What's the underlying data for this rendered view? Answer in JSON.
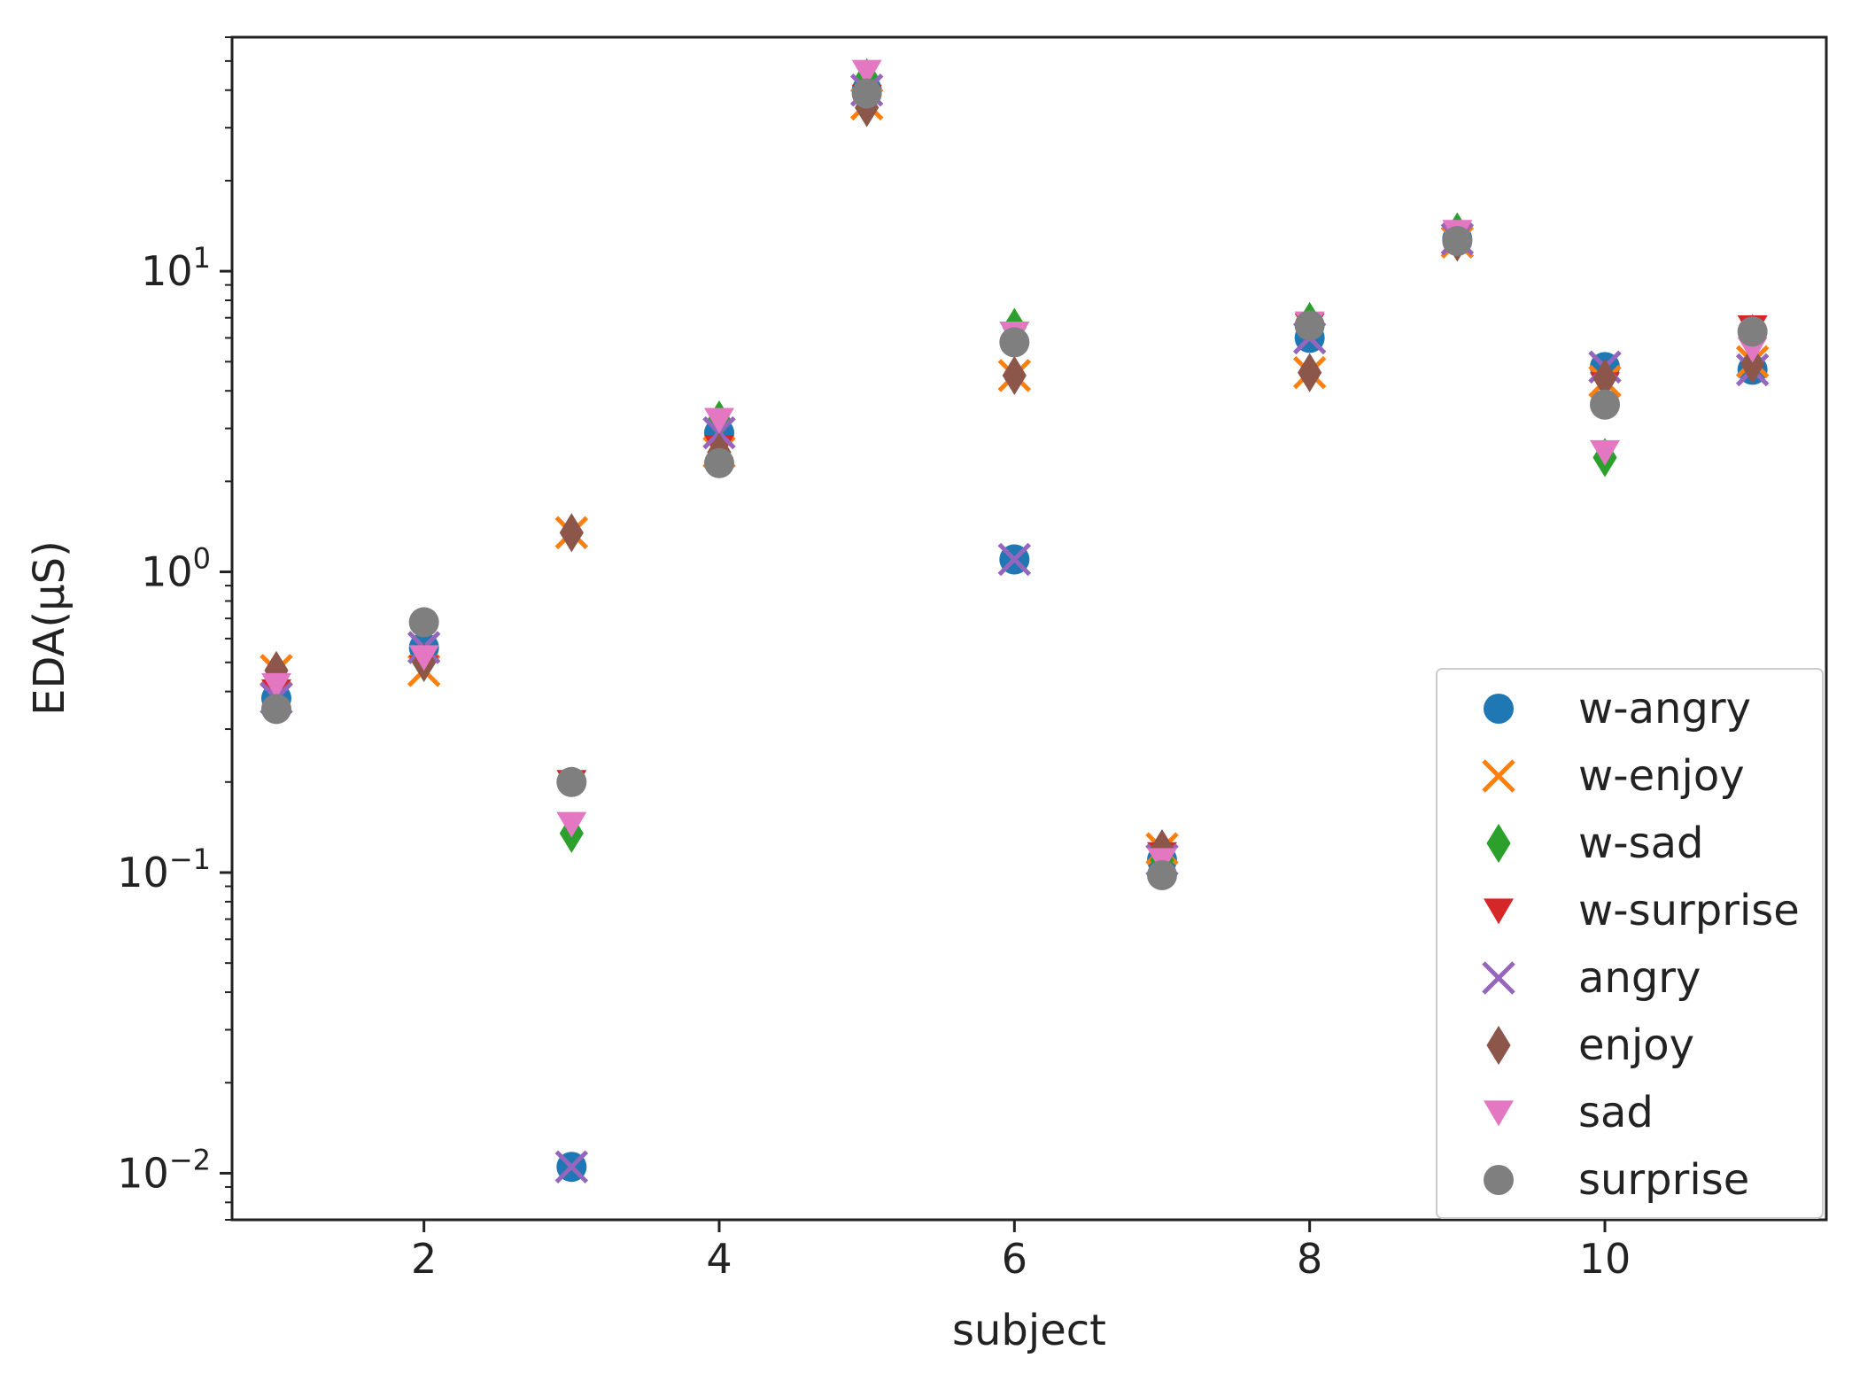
{
  "chart_data": {
    "type": "scatter",
    "xlabel": "subject",
    "ylabel": "EDA(μS)",
    "xlim": [
      0.7,
      11.5
    ],
    "ylim": [
      0.007,
      60
    ],
    "yscale": "log",
    "x_ticks": [
      2,
      4,
      6,
      8,
      10
    ],
    "x_tick_labels": [
      "2",
      "4",
      "6",
      "8",
      "10"
    ],
    "y_ticks": [
      0.01,
      0.1,
      1,
      10
    ],
    "y_tick_labels": [
      {
        "base": "10",
        "exp": "−2"
      },
      {
        "base": "10",
        "exp": "−1"
      },
      {
        "base": "10",
        "exp": "0"
      },
      {
        "base": "10",
        "exp": "1"
      }
    ],
    "legend_position": "lower right",
    "grid": false,
    "x": [
      1,
      2,
      3,
      4,
      5,
      6,
      7,
      8,
      9,
      10,
      11
    ],
    "series": [
      {
        "name": "w-angry",
        "marker": "circle",
        "color": "#1f77b4",
        "values": [
          0.38,
          0.56,
          0.0105,
          2.9,
          40,
          1.1,
          0.11,
          6.0,
          12.8,
          4.8,
          4.7
        ]
      },
      {
        "name": "w-enjoy",
        "marker": "x",
        "color": "#ff7f0e",
        "values": [
          0.47,
          0.47,
          1.35,
          2.5,
          36,
          4.5,
          0.12,
          4.6,
          12.5,
          4.3,
          5.0
        ]
      },
      {
        "name": "w-sad",
        "marker": "diamond",
        "color": "#2ca02c",
        "values": [
          0.42,
          0.5,
          0.135,
          3.2,
          44,
          6.5,
          0.11,
          6.8,
          13.5,
          2.4,
          6.2
        ]
      },
      {
        "name": "w-surprise",
        "marker": "triangle-down",
        "color": "#d62728",
        "values": [
          0.4,
          0.48,
          0.2,
          2.6,
          38,
          6.2,
          0.115,
          6.6,
          13.0,
          4.2,
          6.5
        ]
      },
      {
        "name": "angry",
        "marker": "x",
        "color": "#9467bd",
        "values": [
          0.38,
          0.56,
          0.0105,
          2.9,
          40,
          1.1,
          0.11,
          6.0,
          12.8,
          4.8,
          4.7
        ]
      },
      {
        "name": "enjoy",
        "marker": "diamond",
        "color": "#8c564b",
        "values": [
          0.47,
          0.5,
          1.35,
          2.5,
          35,
          4.5,
          0.12,
          4.6,
          12.5,
          4.4,
          4.9
        ]
      },
      {
        "name": "sad",
        "marker": "triangle-down",
        "color": "#e377c2",
        "values": [
          0.42,
          0.52,
          0.145,
          3.2,
          46,
          6.2,
          0.11,
          6.7,
          13.5,
          2.5,
          5.5
        ]
      },
      {
        "name": "surprise",
        "marker": "circle",
        "color": "#7f7f7f",
        "values": [
          0.35,
          0.68,
          0.2,
          2.3,
          39,
          5.8,
          0.098,
          6.6,
          12.6,
          3.6,
          6.3
        ]
      }
    ]
  }
}
